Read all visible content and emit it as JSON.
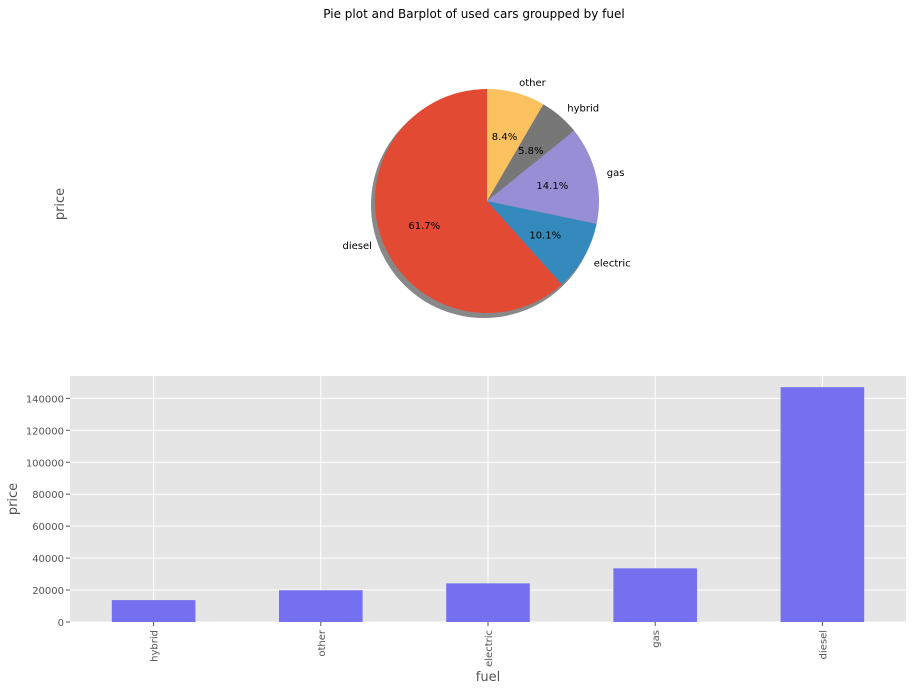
{
  "figure": {
    "suptitle": "Pie plot and Barplot of used cars groupped by fuel"
  },
  "chart_data": [
    {
      "type": "pie",
      "ylabel": "price",
      "start_angle": 90,
      "shadow": true,
      "slices": [
        {
          "label": "diesel",
          "percent": 61.7,
          "pct_text": "61.7%",
          "color": "#E24A33"
        },
        {
          "label": "electric",
          "percent": 10.1,
          "pct_text": "10.1%",
          "color": "#348ABD"
        },
        {
          "label": "gas",
          "percent": 14.1,
          "pct_text": "14.1%",
          "color": "#988ED5"
        },
        {
          "label": "hybrid",
          "percent": 5.8,
          "pct_text": "5.8%",
          "color": "#777777"
        },
        {
          "label": "other",
          "percent": 8.4,
          "pct_text": "8.4%",
          "color": "#FBC15E"
        }
      ]
    },
    {
      "type": "bar",
      "categories": [
        "hybrid",
        "other",
        "electric",
        "gas",
        "diesel"
      ],
      "values": [
        13700,
        19900,
        24200,
        33600,
        147000
      ],
      "xlabel": "fuel",
      "ylabel": "price",
      "ylim": [
        0,
        154000
      ],
      "yticks": [
        0,
        20000,
        40000,
        60000,
        80000,
        100000,
        120000,
        140000
      ],
      "bar_color": "#7570F0",
      "grid": true,
      "background": "#E5E5E5"
    }
  ]
}
